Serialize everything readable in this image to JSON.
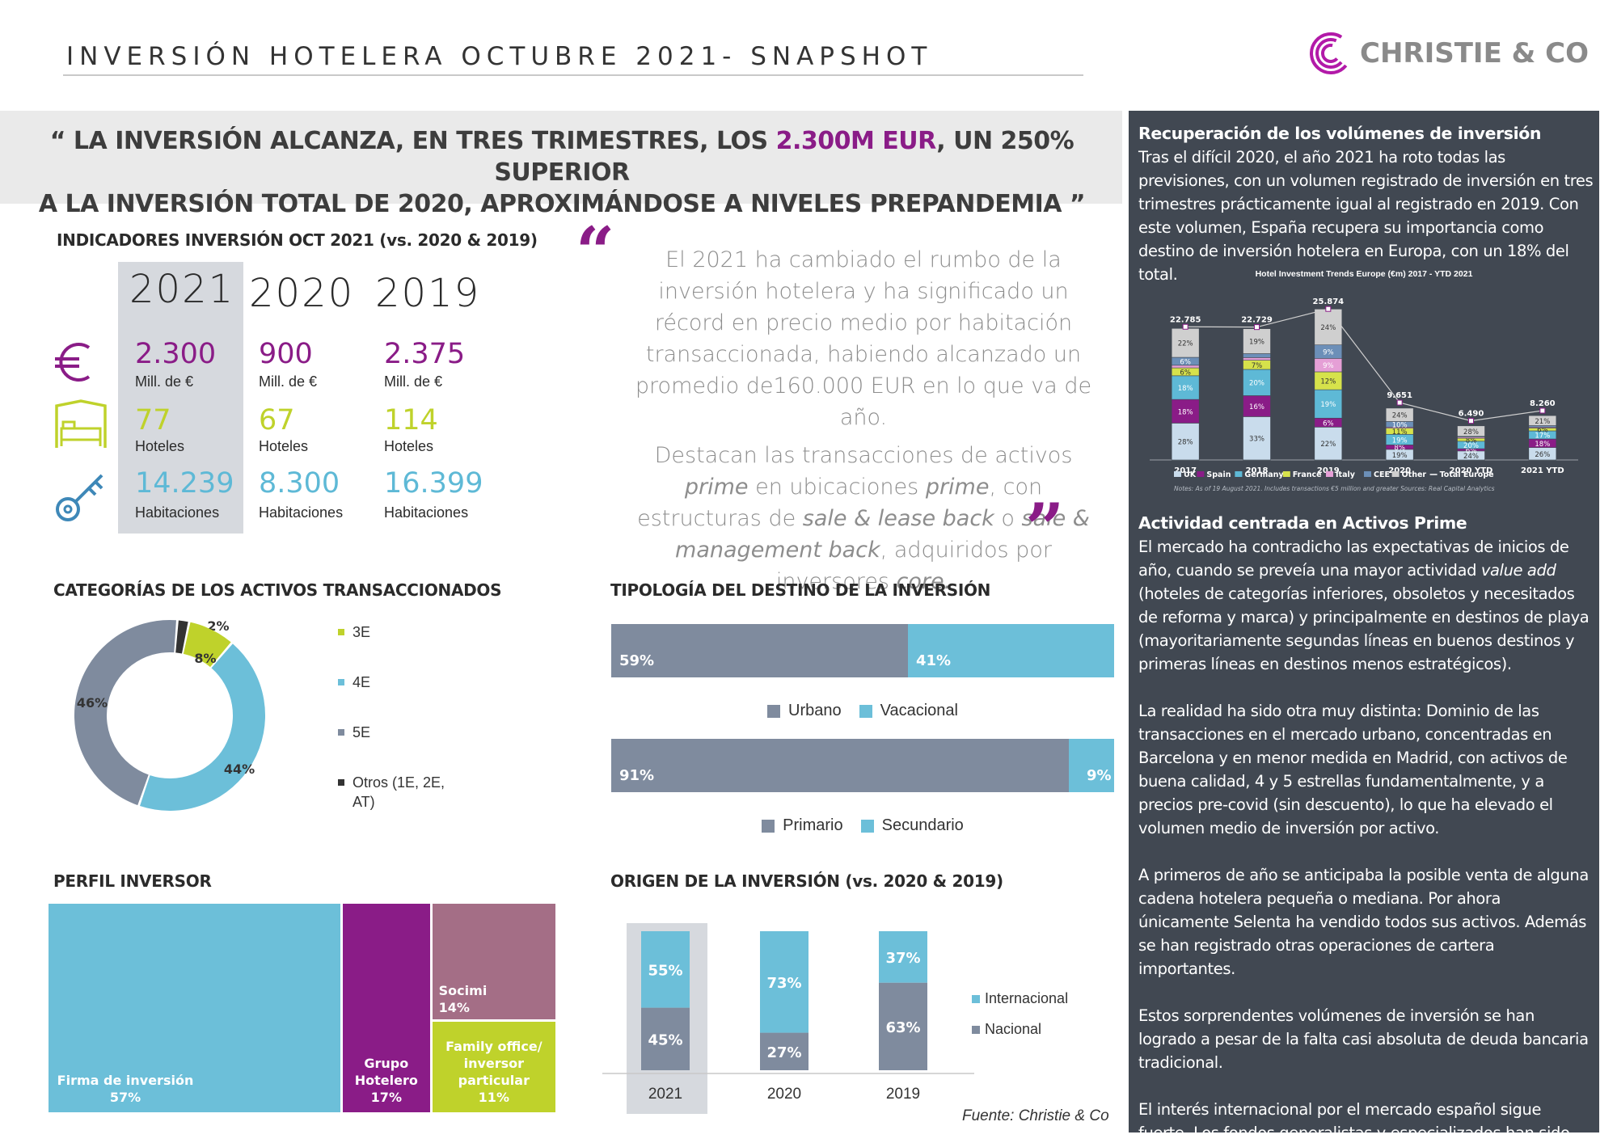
{
  "header": {
    "title": "INVERSIÓN HOTELERA OCTUBRE 2021- SNAPSHOT",
    "logo_text": "CHRISTIE & CO"
  },
  "banner": {
    "line1_a": "“ LA INVERSIÓN ALCANZA, EN TRES TRIMESTRES, LOS ",
    "line1_hl": "2.300M EUR",
    "line1_b": ", UN 250% SUPERIOR",
    "line2": "A LA INVERSIÓN TOTAL DE 2020,  APROXIMÁNDOSE A NIVELES PREPANDEMIA ”"
  },
  "indicators": {
    "heading": "INDICADORES INVERSIÓN OCT 2021 (vs. 2020 & 2019)",
    "years": [
      "2021",
      "2020",
      "2019"
    ],
    "investment": [
      {
        "value": "2.300",
        "unit": "Mill. de €"
      },
      {
        "value": "900",
        "unit": "Mill. de €"
      },
      {
        "value": "2.375",
        "unit": "Mill. de €"
      }
    ],
    "hotels": [
      {
        "value": "77",
        "unit": "Hoteles"
      },
      {
        "value": "67",
        "unit": "Hoteles"
      },
      {
        "value": "114",
        "unit": "Hoteles"
      }
    ],
    "rooms": [
      {
        "value": "14.239",
        "unit": "Habitaciones"
      },
      {
        "value": "8.300",
        "unit": "Habitaciones"
      },
      {
        "value": "16.399",
        "unit": "Habitaciones"
      }
    ],
    "icons": [
      "euro-icon",
      "bed-icon",
      "key-icon"
    ]
  },
  "quote": {
    "p1": "El 2021 ha cambiado el rumbo de la inversión hotelera y ha significado un récord en precio medio por habitación transaccionada, habiendo alcanzado un promedio de160.000 EUR en lo que va de año.",
    "p2_a": "Destacan las transacciones de activos ",
    "p2_b": "prime",
    "p2_c": " en ubicaciones ",
    "p2_d": "prime",
    "p2_e": ", con estructuras de ",
    "p2_f": "sale & lease back",
    "p2_g": " o ",
    "p2_h": "sale & management back",
    "p2_i": ", adquiridos por inversores ",
    "p2_j": "core.",
    "open_mark": "“",
    "close_mark": "”"
  },
  "right_panel": {
    "h1": "Recuperación de los volúmenes de inversión",
    "p1": "Tras el difícil 2020, el año 2021 ha roto todas las previsiones, con un volumen registrado de inversión en tres trimestres prácticamente igual al registrado en 2019. Con este volumen, España recupera su importancia como destino de inversión hotelera en Europa, con un 18% del total.",
    "h2": "Actividad centrada en Activos Prime",
    "p2_a": "El mercado ha contradicho las expectativas de inicios de año, cuando se preveía una mayor actividad ",
    "p2_em": "value add",
    "p2_b": " (hoteles de categorías inferiores, obsoletos y necesitados de reforma y marca) y principalmente en destinos de playa (mayoritariamente segundas líneas en buenos destinos y primeras líneas en destinos menos estratégicos).",
    "p3": "La realidad ha sido otra muy distinta: Dominio de las transacciones en el mercado urbano, concentradas en Barcelona y en menor medida en Madrid, con activos de buena calidad, 4 y 5 estrellas fundamentalmente, y  a precios pre-covid (sin descuento), lo que ha elevado el volumen medio de inversión por activo.",
    "p4": "A primeros de año se anticipaba la posible venta de alguna cadena hotelera pequeña o mediana. Por ahora únicamente Selenta ha vendido todos sus activos. Además se han registrado otras operaciones de cartera importantes.",
    "p5": "Estos sorprendentes volúmenes de inversión se han logrado a pesar de la falta casi absoluta de deuda bancaria tradicional.",
    "p6": "El interés internacional por el mercado español sigue fuerte. Los fondos generalistas y especializados han sido con mucha diferencia los inversores más activos en estos tres trimestres."
  },
  "sections": {
    "categories": "CATEGORÍAS DE LOS ACTIVOS TRANSACCIONADOS",
    "tipologia": "TIPOLOGÍA DEL DESTINO DE LA INVERSIÓN",
    "perfil": "PERFIL INVERSOR",
    "origen": "ORIGEN DE LA INVERSIÓN (vs. 2020 & 2019)"
  },
  "source": "Fuente: Christie & Co",
  "colors": {
    "purple": "#8a1c87",
    "lime": "#bfd22b",
    "sky": "#6cbfd9",
    "slate": "#7f8b9e",
    "dark": "#333333",
    "mauve": "#a46e86",
    "panel": "#414852"
  },
  "chart_data": [
    {
      "id": "europe",
      "type": "bar",
      "title": "Hotel Investment Trends Europe (€m) 2017 - YTD 2021",
      "categories": [
        "2017",
        "2018",
        "2019",
        "2020",
        "2020 YTD",
        "2021 YTD"
      ],
      "totals": [
        22785,
        22729,
        25874,
        9651,
        6490,
        8260
      ],
      "total_labels": [
        "22.785",
        "22.729",
        "25.874",
        "9.651",
        "6.490",
        "8.260"
      ],
      "series": [
        {
          "name": "UK",
          "color": "#c9dcec",
          "values": [
            28,
            33,
            22,
            19,
            24,
            26
          ]
        },
        {
          "name": "Spain",
          "color": "#8a1c87",
          "values": [
            18,
            16,
            6,
            8,
            6,
            18
          ]
        },
        {
          "name": "Germany",
          "color": "#5eb9d6",
          "values": [
            18,
            20,
            19,
            19,
            20,
            17
          ]
        },
        {
          "name": "France",
          "color": "#d6e24b",
          "values": [
            6,
            7,
            12,
            11,
            8,
            6
          ]
        },
        {
          "name": "Italy",
          "color": "#e59fd6",
          "values": [
            2,
            2,
            9,
            2,
            3,
            2
          ]
        },
        {
          "name": "CEE",
          "color": "#6c8fb8",
          "values": [
            6,
            3,
            9,
            10,
            2,
            3
          ]
        },
        {
          "name": "Other",
          "color": "#cfcfcf",
          "values": [
            22,
            19,
            24,
            24,
            28,
            21
          ]
        }
      ],
      "legend": [
        "UK",
        "Spain",
        "Germany",
        "France",
        "Italy",
        "CEE",
        "Other",
        "Total Europe"
      ],
      "notes": "Notes: As of 19 August 2021. Includes transactions €5 million and greater Sources: Real Capital Analytics"
    },
    {
      "id": "categorias",
      "type": "pie",
      "slices": [
        {
          "name": "3E",
          "value": 8,
          "label": "8%",
          "color": "#bfd22b"
        },
        {
          "name": "4E",
          "value": 44,
          "label": "44%",
          "color": "#6cbfd9"
        },
        {
          "name": "5E",
          "value": 46,
          "label": "46%",
          "color": "#7f8b9e"
        },
        {
          "name": "Otros (1E, 2E, AT)",
          "value": 2,
          "label": "2%",
          "color": "#333333"
        }
      ]
    },
    {
      "id": "destino",
      "type": "bar",
      "orientation": "horizontal-stacked",
      "bars": [
        {
          "series": [
            "Urbano",
            "Vacacional"
          ],
          "values": [
            59,
            41
          ],
          "labels": [
            "59%",
            "41%"
          ]
        },
        {
          "series": [
            "Primario",
            "Secundario"
          ],
          "values": [
            91,
            9
          ],
          "labels": [
            "91%",
            "9%"
          ]
        }
      ]
    },
    {
      "id": "perfil",
      "type": "treemap",
      "items": [
        {
          "name": "Firma de inversión",
          "value": 57,
          "label": "57%",
          "color": "#6cbfd9"
        },
        {
          "name": "Grupo Hotelero",
          "value": 17,
          "label": "17%",
          "color": "#8a1c87"
        },
        {
          "name": "Socimi",
          "value": 14,
          "label": "14%",
          "color": "#a46e86"
        },
        {
          "name": "Family office/ inversor particular",
          "value": 11,
          "label": "11%",
          "color": "#bfd22b"
        }
      ]
    },
    {
      "id": "origen",
      "type": "bar",
      "stacked": true,
      "categories": [
        "2021",
        "2020",
        "2019"
      ],
      "series": [
        {
          "name": "Nacional",
          "values": [
            45,
            27,
            63
          ],
          "color": "#7f8b9e"
        },
        {
          "name": "Internacional",
          "values": [
            55,
            73,
            37
          ],
          "color": "#6cbfd9"
        }
      ],
      "legend": [
        "Internacional",
        "Nacional"
      ]
    }
  ]
}
